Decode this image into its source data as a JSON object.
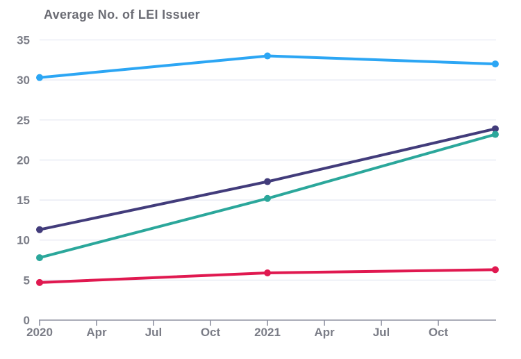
{
  "page": {
    "background_color": "#ffffff"
  },
  "chart_data": {
    "type": "line",
    "title": "Average No. of LEI Issuer",
    "xlabel": "",
    "ylabel": "",
    "x_tick_labels": [
      "2020",
      "Apr",
      "Jul",
      "Oct",
      "2021",
      "Apr",
      "Jul",
      "Oct"
    ],
    "x_tick_units": [
      0,
      1,
      2,
      3,
      4,
      5,
      6,
      7
    ],
    "x_total_units": 8,
    "y_ticks": [
      0,
      5,
      10,
      15,
      20,
      25,
      30,
      35
    ],
    "ylim": [
      0,
      35
    ],
    "grid": "horizontal-on",
    "legend_position": "none",
    "marker": "circle",
    "series": [
      {
        "name": "light-blue-series",
        "color": "#2CA6F4",
        "x_units": [
          0,
          4,
          8
        ],
        "values": [
          30.3,
          33.0,
          32.0
        ]
      },
      {
        "name": "dark-indigo-series",
        "color": "#423C7B",
        "x_units": [
          0,
          4,
          8
        ],
        "values": [
          11.3,
          17.3,
          23.9
        ]
      },
      {
        "name": "teal-series",
        "color": "#2BA79B",
        "x_units": [
          0,
          4,
          8
        ],
        "values": [
          7.8,
          15.2,
          23.2
        ]
      },
      {
        "name": "crimson-series",
        "color": "#E01950",
        "x_units": [
          0,
          4,
          8
        ],
        "values": [
          4.7,
          5.9,
          6.3
        ]
      }
    ],
    "styles": {
      "title_color": "#6b6c74",
      "tick_label_color": "#7b7d87",
      "gridline_color": "#e6e9f3",
      "axis_color": "#8d90a0",
      "line_width": 4,
      "marker_radius": 5
    }
  }
}
